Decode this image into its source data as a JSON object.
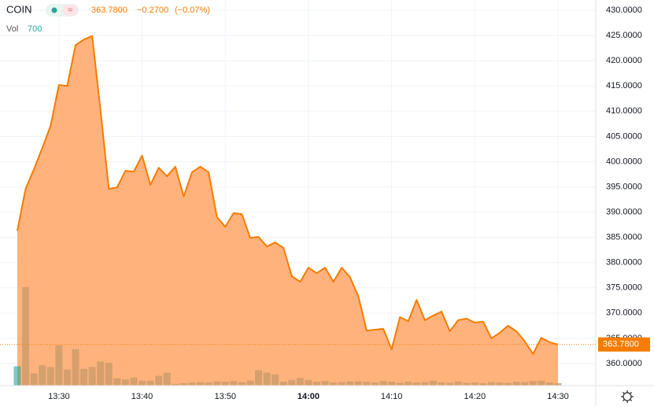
{
  "header": {
    "symbol": "COIN",
    "price": "363.7800",
    "change": "−0.2700",
    "change_pct": "(−0.07%)",
    "vol_label": "Vol",
    "vol": "700"
  },
  "chart_data": {
    "type": "area",
    "categories": [
      null,
      null,
      null,
      null,
      null,
      "13:30",
      null,
      null,
      null,
      null,
      null,
      null,
      null,
      null,
      null,
      "13:40",
      null,
      null,
      null,
      null,
      null,
      null,
      null,
      null,
      null,
      "13:50",
      null,
      null,
      null,
      null,
      null,
      null,
      null,
      null,
      null,
      "14:00",
      null,
      null,
      null,
      null,
      null,
      null,
      null,
      null,
      null,
      "14:10",
      null,
      null,
      null,
      null,
      null,
      null,
      null,
      null,
      null,
      "14:20",
      null,
      null,
      null,
      null,
      null,
      null,
      null,
      null,
      null,
      "14:30"
    ],
    "series": [
      {
        "name": "COIN",
        "color": "#f57c00",
        "fill": "#ffb27c",
        "values": [
          386.3,
          394.6,
          398.5,
          402.7,
          407.1,
          415.2,
          415.0,
          423.1,
          424.2,
          424.9,
          410.2,
          394.6,
          394.9,
          398.2,
          398.0,
          401.2,
          395.4,
          398.8,
          397.1,
          399.0,
          393.1,
          397.9,
          399.0,
          397.9,
          389.0,
          387.1,
          389.8,
          389.6,
          384.9,
          385.1,
          383.2,
          384.0,
          382.9,
          377.3,
          376.2,
          379.0,
          377.9,
          379.0,
          376.2,
          379.0,
          377.1,
          373.3,
          366.5,
          366.7,
          366.9,
          362.8,
          369.2,
          368.4,
          372.6,
          368.6,
          369.5,
          370.3,
          366.4,
          368.6,
          368.9,
          368.1,
          368.3,
          365.0,
          366.1,
          367.5,
          366.4,
          364.4,
          361.9,
          365.1,
          364.2,
          363.78
        ]
      },
      {
        "name": "Vol",
        "axis": "y2",
        "color": "#c79a6a",
        "values": [
          5500,
          28100,
          3500,
          5800,
          5300,
          11500,
          4600,
          10400,
          4800,
          5300,
          6900,
          6500,
          2100,
          1800,
          2300,
          1400,
          1400,
          2800,
          3700,
          500,
          700,
          900,
          1000,
          900,
          1200,
          1100,
          1300,
          1000,
          1400,
          4400,
          3700,
          3200,
          1100,
          1600,
          2200,
          1600,
          1100,
          1300,
          900,
          1000,
          1200,
          1200,
          1100,
          900,
          1300,
          1100,
          800,
          1100,
          900,
          1000,
          1400,
          900,
          800,
          1200,
          800,
          900,
          700,
          1000,
          900,
          800,
          1100,
          1000,
          1300,
          1400,
          900,
          700
        ]
      }
    ],
    "ylim": [
      355.63,
      432.03
    ],
    "yticks": [
      {
        "value": 360,
        "label": "360.0000"
      },
      {
        "value": 365,
        "label": "365.0000"
      },
      {
        "value": 370,
        "label": "370.0000"
      },
      {
        "value": 375,
        "label": "375.0000"
      },
      {
        "value": 380,
        "label": "380.0000"
      },
      {
        "value": 385,
        "label": "385.0000"
      },
      {
        "value": 390,
        "label": "390.0000"
      },
      {
        "value": 395,
        "label": "395.0000"
      },
      {
        "value": 400,
        "label": "400.0000"
      },
      {
        "value": 405,
        "label": "405.0000"
      },
      {
        "value": 410,
        "label": "410.0000"
      },
      {
        "value": 415,
        "label": "415.0000"
      },
      {
        "value": 420,
        "label": "420.0000"
      },
      {
        "value": 425,
        "label": "425.0000"
      },
      {
        "value": 430,
        "label": "430.0000"
      }
    ],
    "y2lim": [
      0,
      110000
    ],
    "grid": true
  }
}
